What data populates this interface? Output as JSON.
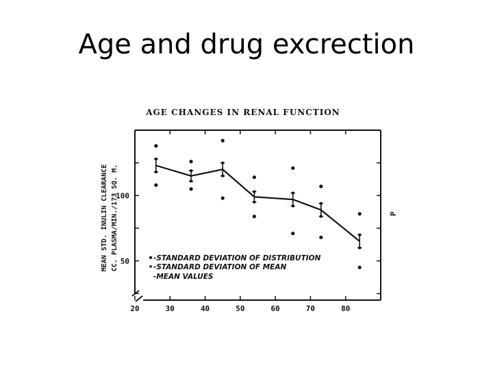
{
  "slide": {
    "title": "Age and drug excrection"
  },
  "chart_data": {
    "type": "line",
    "title": "AGE CHANGES IN RENAL FUNCTION",
    "ylabel_lines": [
      "MEAN STD. INULIN CLEARANCE",
      "CC. PLASMA/MIN./173 SQ. M."
    ],
    "xlabel": "",
    "xlim": [
      20,
      90
    ],
    "ylim": [
      20,
      150
    ],
    "x_ticks": [
      20,
      30,
      40,
      50,
      60,
      70,
      80
    ],
    "y_ticks": [
      50,
      100
    ],
    "right_label": "P",
    "legend": [
      "-STANDARD DEVIATION OF DISTRIBUTION",
      "-STANDARD DEVIATION OF MEAN",
      "-MEAN VALUES"
    ],
    "series": [
      {
        "x": [
          26,
          36,
          45,
          54,
          65,
          73,
          84
        ],
        "mean": [
          123,
          115,
          120,
          99,
          97,
          89,
          65
        ],
        "sem_low": [
          118,
          111,
          115,
          95,
          92,
          84,
          60
        ],
        "sem_high": [
          128,
          119,
          125,
          103,
          102,
          94,
          70
        ],
        "sd_low": [
          108,
          105,
          98,
          84,
          71,
          68,
          45
        ],
        "sd_high": [
          138,
          126,
          142,
          114,
          121,
          107,
          86
        ]
      }
    ]
  }
}
